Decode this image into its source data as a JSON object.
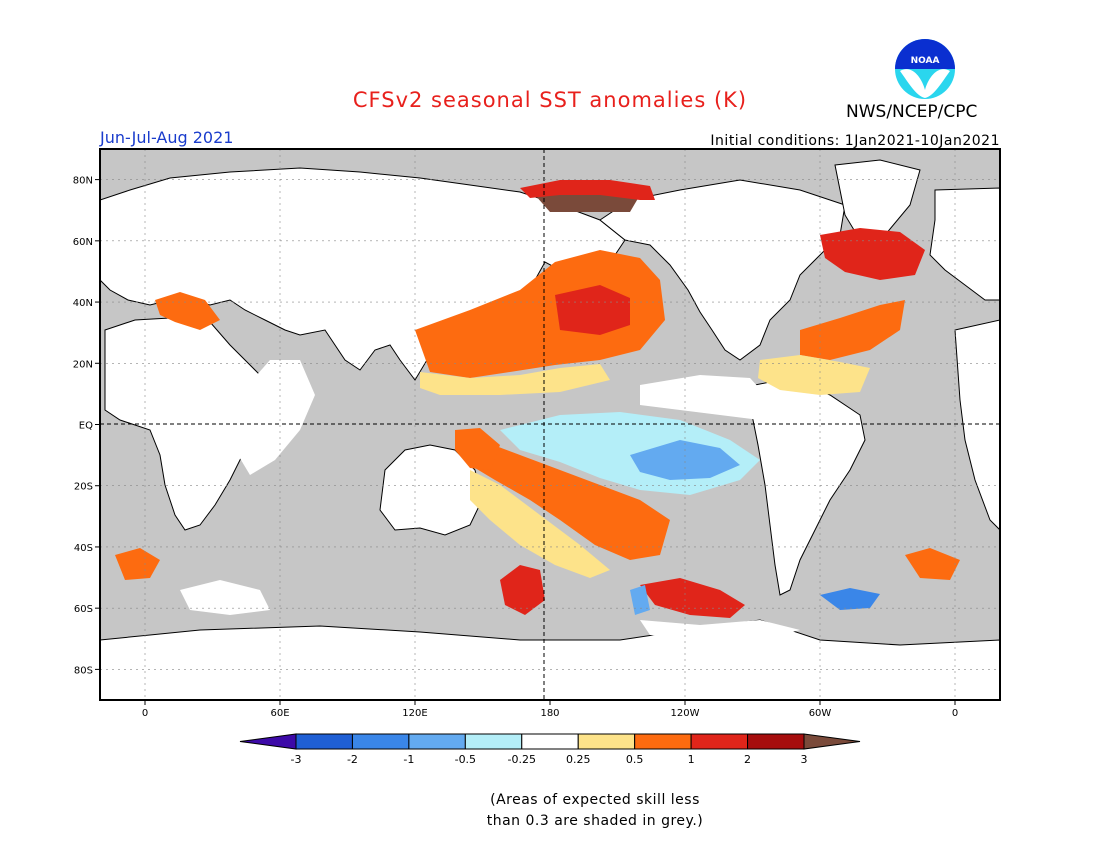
{
  "header": {
    "title": "CFSv2 seasonal SST anomalies (K)",
    "agency": "NWS/NCEP/CPC",
    "season": "Jun-Jul-Aug 2021",
    "initial_conditions": "Initial conditions: 1Jan2021-10Jan2021",
    "logo_text": "NOAA"
  },
  "map": {
    "lat_labels": [
      "80N",
      "60N",
      "40N",
      "20N",
      "EQ",
      "20S",
      "40S",
      "60S",
      "80S"
    ],
    "lat_values": [
      80,
      60,
      40,
      20,
      0,
      -20,
      -40,
      -60,
      -80
    ],
    "lon_labels": [
      "0",
      "60E",
      "120E",
      "180",
      "120W",
      "60W",
      "0"
    ],
    "lon_values": [
      0,
      60,
      120,
      180,
      240,
      300,
      360
    ],
    "lon_range": [
      -20,
      380
    ],
    "lat_range": [
      -90,
      90
    ],
    "land_color": "#ffffff",
    "grey_color": "#c6c6c6"
  },
  "legend": {
    "tick_labels": [
      "-3",
      "-2",
      "-1",
      "-0.5",
      "-0.25",
      "0.25",
      "0.5",
      "1",
      "2",
      "3"
    ],
    "colors": [
      "#3d0aa8",
      "#1f5fd4",
      "#3a86e8",
      "#63aaf0",
      "#b4eef8",
      "#ffffff",
      "#fde38a",
      "#fd6b10",
      "#e0251a",
      "#a60d0d",
      "#7a4a3a"
    ]
  },
  "caption": {
    "line1": "(Areas of expected skill less",
    "line2": "than 0.3 are shaded in grey.)"
  }
}
